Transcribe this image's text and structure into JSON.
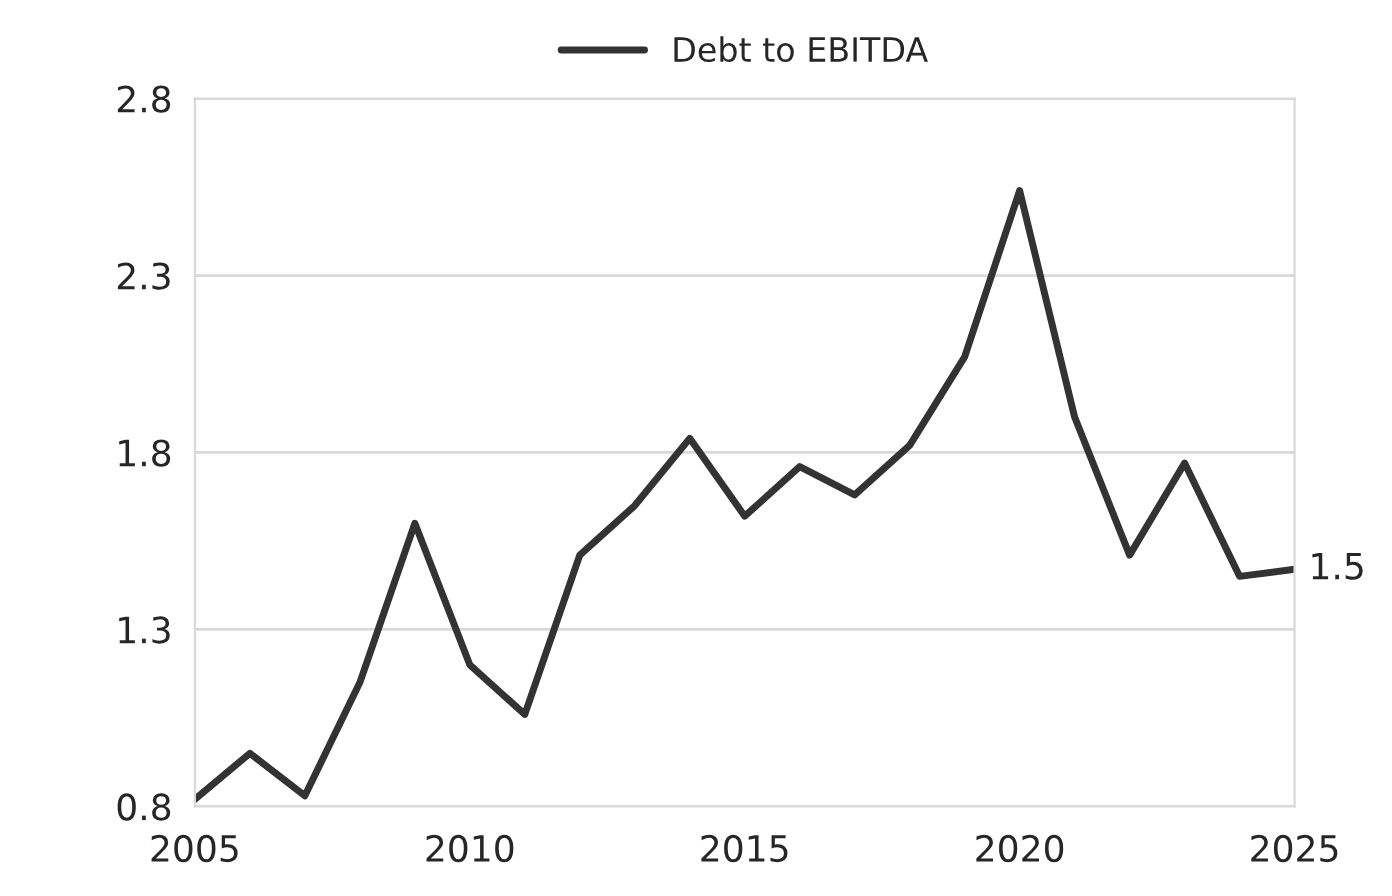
{
  "chart_data": {
    "type": "line",
    "x": [
      2005,
      2006,
      2007,
      2008,
      2009,
      2010,
      2011,
      2012,
      2013,
      2014,
      2015,
      2016,
      2017,
      2018,
      2019,
      2020,
      2021,
      2022,
      2023,
      2024,
      2025
    ],
    "series": [
      {
        "name": "Debt to EBITDA",
        "color": "#333333",
        "values": [
          0.82,
          0.95,
          0.83,
          1.15,
          1.6,
          1.2,
          1.06,
          1.51,
          1.65,
          1.84,
          1.62,
          1.76,
          1.68,
          1.82,
          2.07,
          2.54,
          1.9,
          1.51,
          1.77,
          1.45,
          1.47
        ],
        "value_labels": [
          null,
          null,
          null,
          null,
          null,
          null,
          null,
          null,
          null,
          null,
          null,
          null,
          null,
          null,
          null,
          null,
          null,
          null,
          null,
          null,
          "1.5"
        ]
      }
    ],
    "xlim": [
      2005,
      2025
    ],
    "xticks": [
      2005,
      2010,
      2015,
      2020,
      2025
    ],
    "ylim": [
      0.8,
      2.8
    ],
    "yticks": [
      0.8,
      1.3,
      1.8,
      2.3,
      2.8
    ],
    "grid": "y",
    "legend": "top",
    "line_style": "solid",
    "marker": "none"
  }
}
